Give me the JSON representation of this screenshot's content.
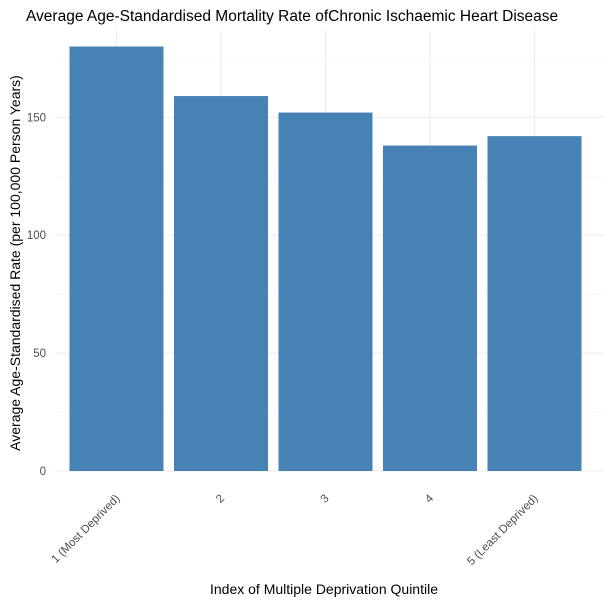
{
  "chart_data": {
    "type": "bar",
    "title": "Average Age-Standardised Mortality Rate ofChronic Ischaemic Heart Disease",
    "xlabel": "Index of Multiple Deprivation Quintile",
    "ylabel": "Average Age-Standardised Rate (per 100,000 Person Years)",
    "categories": [
      "1 (Most Deprived)",
      "2",
      "3",
      "4",
      "5 (Least Deprived)"
    ],
    "values": [
      180,
      159,
      152,
      138,
      142
    ],
    "ylim": [
      0,
      187
    ],
    "yticks": [
      0,
      50,
      100,
      150
    ],
    "bar_color": "#4682b4",
    "grid": true,
    "legend": "none"
  }
}
